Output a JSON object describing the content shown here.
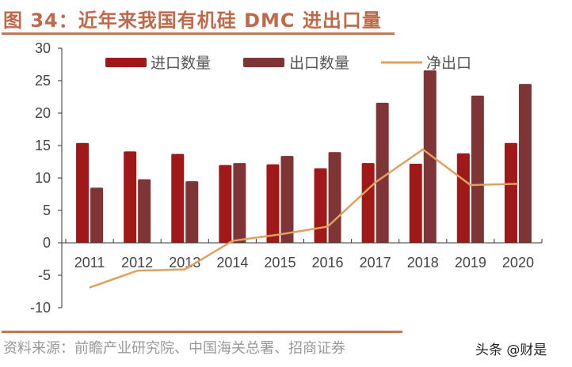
{
  "title": "图 34：近年来我国有机硅 DMC 进出口量",
  "source": "资料来源：前瞻产业研究院、中国海关总署、招商证券",
  "watermark": "头条 @财是",
  "colors": {
    "import": "#a01818",
    "export": "#7f3535",
    "net": "#e0a060",
    "title": "#c0694a"
  },
  "chart_data": {
    "type": "bar",
    "title": "",
    "xlabel": "",
    "ylabel": "",
    "ylim": [
      -10,
      30
    ],
    "yticks": [
      -10,
      -5,
      0,
      5,
      10,
      15,
      20,
      25,
      30
    ],
    "grid": false,
    "legend_placement": "top",
    "categories": [
      "2011",
      "2012",
      "2013",
      "2014",
      "2015",
      "2016",
      "2017",
      "2018",
      "2019",
      "2020"
    ],
    "series": [
      {
        "name": "进口数量",
        "type": "bar",
        "values": [
          15.4,
          14.1,
          13.7,
          12.0,
          12.1,
          11.5,
          12.3,
          12.2,
          13.8,
          15.4
        ]
      },
      {
        "name": "出口数量",
        "type": "bar",
        "values": [
          8.5,
          9.8,
          9.5,
          12.3,
          13.4,
          14.0,
          21.6,
          26.6,
          22.7,
          24.5
        ]
      },
      {
        "name": "净出口",
        "type": "line",
        "values": [
          -6.9,
          -4.3,
          -4.1,
          0.3,
          1.3,
          2.5,
          9.3,
          14.4,
          8.9,
          9.1
        ]
      }
    ]
  }
}
